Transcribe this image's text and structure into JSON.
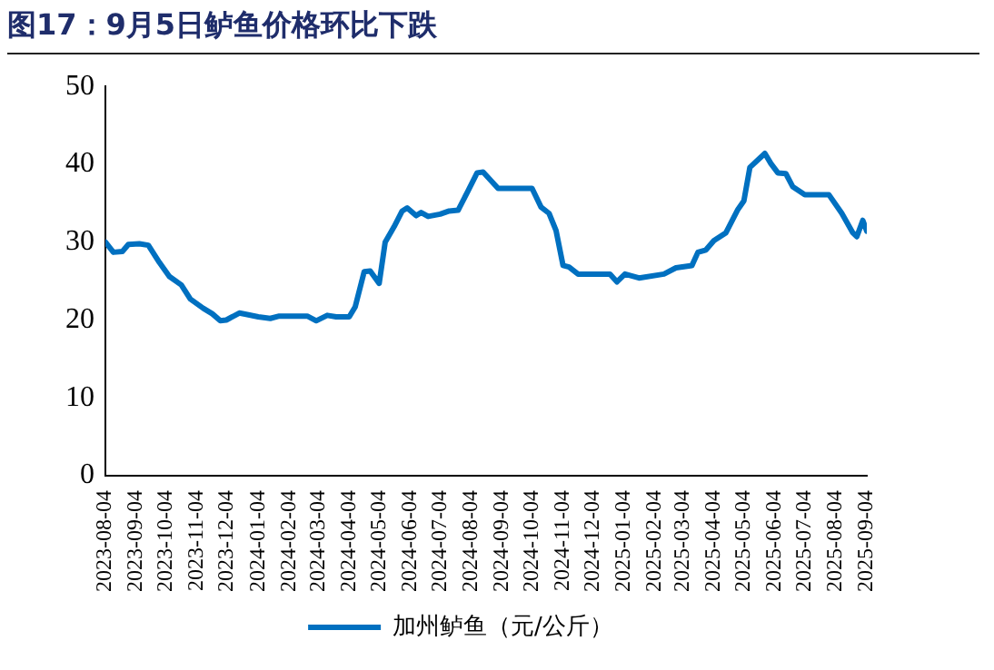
{
  "chart_data": {
    "type": "line",
    "title": "图17：9月5日鲈鱼价格环比下跌",
    "x": [
      "2023-08-04",
      "2023-08-12",
      "2023-08-21",
      "2023-08-27",
      "2023-09-07",
      "2023-09-16",
      "2023-09-27",
      "2023-10-07",
      "2023-10-19",
      "2023-10-28",
      "2023-11-10",
      "2023-11-19",
      "2023-11-27",
      "2023-12-03",
      "2023-12-16",
      "2023-12-24",
      "2024-01-04",
      "2024-01-16",
      "2024-01-25",
      "2024-02-22",
      "2024-03-02",
      "2024-03-13",
      "2024-03-22",
      "2024-04-04",
      "2024-04-10",
      "2024-04-19",
      "2024-04-25",
      "2024-05-04",
      "2024-05-10",
      "2024-05-19",
      "2024-05-27",
      "2024-06-01",
      "2024-06-10",
      "2024-06-15",
      "2024-06-22",
      "2024-07-04",
      "2024-07-13",
      "2024-07-22",
      "2024-08-01",
      "2024-08-10",
      "2024-08-16",
      "2024-08-31",
      "2024-10-04",
      "2024-10-13",
      "2024-10-21",
      "2024-10-28",
      "2024-11-04",
      "2024-11-10",
      "2024-11-19",
      "2024-12-21",
      "2024-12-28",
      "2025-01-05",
      "2025-01-19",
      "2025-02-13",
      "2025-02-25",
      "2025-03-13",
      "2025-03-19",
      "2025-03-27",
      "2025-04-04",
      "2025-04-16",
      "2025-04-28",
      "2025-05-04",
      "2025-05-10",
      "2025-05-25",
      "2025-05-31",
      "2025-06-07",
      "2025-06-15",
      "2025-06-22",
      "2025-07-04",
      "2025-07-28",
      "2025-08-10",
      "2025-08-21",
      "2025-08-25",
      "2025-08-31",
      "2025-09-04"
    ],
    "series": [
      {
        "name": "加州鲈鱼（元/公斤）",
        "color": "#0070c0",
        "values": [
          30,
          28.7,
          28.8,
          29.7,
          29.8,
          29.6,
          27.4,
          25.6,
          24.5,
          22.7,
          21.5,
          20.8,
          19.9,
          20,
          20.9,
          20.7,
          20.4,
          20.2,
          20.5,
          20.5,
          19.9,
          20.6,
          20.4,
          20.4,
          21.7,
          26.2,
          26.3,
          24.7,
          30,
          32,
          34,
          34.4,
          33.4,
          33.8,
          33.3,
          33.6,
          34,
          34.1,
          36.6,
          38.9,
          39,
          36.9,
          36.9,
          34.5,
          33.7,
          31.5,
          27,
          26.8,
          25.9,
          25.9,
          24.9,
          25.9,
          25.4,
          25.9,
          26.7,
          27,
          28.7,
          29,
          30.2,
          31.2,
          34.2,
          35.3,
          39.6,
          41.4,
          40.1,
          38.9,
          38.8,
          37.1,
          36.1,
          36.1,
          33.7,
          31.2,
          30.7,
          32.8,
          31.4
        ]
      }
    ],
    "xlim": [
      "2023-08-04",
      "2025-09-04"
    ],
    "xticks": [
      "2023-08-04",
      "2023-09-04",
      "2023-10-04",
      "2023-11-04",
      "2023-12-04",
      "2024-01-04",
      "2024-02-04",
      "2024-03-04",
      "2024-04-04",
      "2024-05-04",
      "2024-06-04",
      "2024-07-04",
      "2024-08-04",
      "2024-09-04",
      "2024-10-04",
      "2024-11-04",
      "2024-12-04",
      "2025-01-04",
      "2025-02-04",
      "2025-03-04",
      "2025-04-04",
      "2025-05-04",
      "2025-06-04",
      "2025-07-04",
      "2025-08-04",
      "2025-09-04"
    ],
    "ylim": [
      0,
      50
    ],
    "yticks": [
      0,
      10,
      20,
      30,
      40,
      50
    ],
    "grid": false,
    "legend": "bottom",
    "marker": "none",
    "line_style": "solid"
  }
}
